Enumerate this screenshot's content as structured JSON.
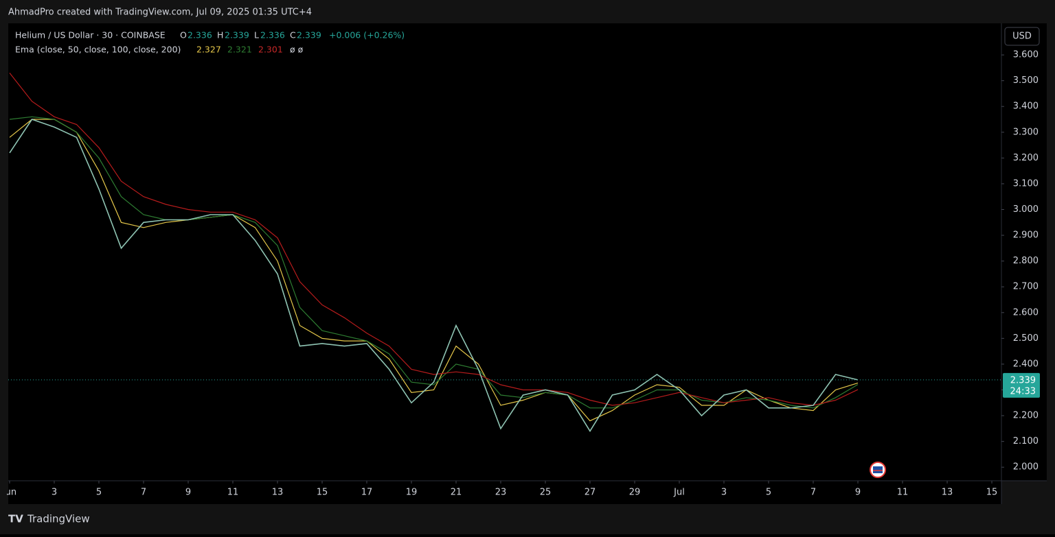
{
  "header": {
    "credit": "AhmadPro created with TradingView.com, Jul 09, 2025 01:35 UTC+4",
    "brand": "TradingView"
  },
  "legend": {
    "symbol": "Helium / US Dollar · 30 · COINBASE",
    "o_label": "O",
    "open": "2.336",
    "h_label": "H",
    "high": "2.339",
    "l_label": "L",
    "low": "2.336",
    "c_label": "C",
    "close": "2.339",
    "change": "+0.006 (+0.26%)",
    "ema_label": "Ema (close, 50, close, 100, close, 200)",
    "ema_tail": "ø ø"
  },
  "currency": "USD",
  "countdown": "24:33",
  "chart_data": {
    "type": "line",
    "x": [
      1,
      2,
      3,
      4,
      5,
      6,
      7,
      8,
      9,
      10,
      11,
      12,
      13,
      14,
      15,
      16,
      17,
      18,
      19,
      20,
      21,
      22,
      23,
      24,
      25,
      26,
      27,
      28,
      29,
      30,
      31,
      32,
      33,
      34,
      35,
      36,
      37,
      38,
      39
    ],
    "series": [
      {
        "name": "EMA 50",
        "color": "#e6c84a",
        "values": [
          3.28,
          3.35,
          3.35,
          3.3,
          3.15,
          2.95,
          2.93,
          2.95,
          2.96,
          2.97,
          2.98,
          2.93,
          2.8,
          2.55,
          2.5,
          2.49,
          2.49,
          2.42,
          2.29,
          2.3,
          2.47,
          2.4,
          2.24,
          2.26,
          2.29,
          2.28,
          2.18,
          2.22,
          2.28,
          2.32,
          2.31,
          2.24,
          2.24,
          2.3,
          2.26,
          2.23,
          2.22,
          2.3,
          2.327
        ]
      },
      {
        "name": "EMA 100",
        "color": "#2e7d32",
        "values": [
          3.35,
          3.36,
          3.35,
          3.3,
          3.2,
          3.05,
          2.98,
          2.96,
          2.96,
          2.97,
          2.98,
          2.95,
          2.86,
          2.62,
          2.53,
          2.51,
          2.49,
          2.44,
          2.33,
          2.32,
          2.4,
          2.38,
          2.28,
          2.27,
          2.29,
          2.28,
          2.23,
          2.23,
          2.26,
          2.3,
          2.3,
          2.26,
          2.25,
          2.27,
          2.26,
          2.24,
          2.23,
          2.27,
          2.321
        ]
      },
      {
        "name": "EMA 200",
        "color": "#b71c1c",
        "values": [
          3.53,
          3.42,
          3.36,
          3.33,
          3.24,
          3.11,
          3.05,
          3.02,
          3.0,
          2.99,
          2.99,
          2.96,
          2.89,
          2.72,
          2.63,
          2.58,
          2.52,
          2.47,
          2.38,
          2.36,
          2.37,
          2.36,
          2.32,
          2.3,
          2.3,
          2.29,
          2.26,
          2.24,
          2.25,
          2.27,
          2.29,
          2.27,
          2.25,
          2.26,
          2.27,
          2.25,
          2.24,
          2.26,
          2.301
        ]
      },
      {
        "name": "Price",
        "color": "#8fc4b3",
        "values": [
          3.22,
          3.35,
          3.32,
          3.28,
          3.08,
          2.85,
          2.95,
          2.96,
          2.96,
          2.98,
          2.98,
          2.88,
          2.75,
          2.47,
          2.48,
          2.47,
          2.48,
          2.38,
          2.25,
          2.33,
          2.55,
          2.38,
          2.15,
          2.28,
          2.3,
          2.28,
          2.14,
          2.28,
          2.3,
          2.36,
          2.3,
          2.2,
          2.28,
          2.3,
          2.23,
          2.23,
          2.24,
          2.36,
          2.339
        ]
      }
    ],
    "xlim": [
      0.57,
      45.43
    ],
    "xticks": [
      {
        "value": 1,
        "label": "Jun"
      },
      3,
      5,
      7,
      9,
      11,
      13,
      15,
      17,
      19,
      21,
      23,
      25,
      27,
      29,
      {
        "value": 31,
        "label": "Jul"
      },
      {
        "value": 33,
        "label": "3"
      },
      {
        "value": 35,
        "label": "5"
      },
      {
        "value": 37,
        "label": "7"
      },
      {
        "value": 39,
        "label": "9"
      },
      {
        "value": 41,
        "label": "11"
      },
      {
        "value": 43,
        "label": "13"
      },
      {
        "value": 45,
        "label": "15"
      }
    ],
    "ylim": [
      1.95,
      3.72
    ],
    "yticks": [
      {
        "value": 2.0,
        "label": "2.000"
      },
      {
        "value": 2.1,
        "label": "2.100"
      },
      {
        "value": 2.2,
        "label": "2.200"
      },
      {
        "value": 2.3,
        "label": "2.300"
      },
      {
        "value": 2.4,
        "label": "2.400"
      },
      {
        "value": 2.5,
        "label": "2.500"
      },
      {
        "value": 2.6,
        "label": "2.600"
      },
      {
        "value": 2.7,
        "label": "2.700"
      },
      {
        "value": 2.8,
        "label": "2.800"
      },
      {
        "value": 2.9,
        "label": "2.900"
      },
      {
        "value": 3.0,
        "label": "3.000"
      },
      {
        "value": 3.1,
        "label": "3.100"
      },
      {
        "value": 3.2,
        "label": "3.200"
      },
      {
        "value": 3.3,
        "label": "3.300"
      },
      {
        "value": 3.4,
        "label": "3.400"
      },
      {
        "value": 3.5,
        "label": "3.500"
      },
      {
        "value": 3.6,
        "label": "3.600"
      }
    ],
    "grid": false
  }
}
